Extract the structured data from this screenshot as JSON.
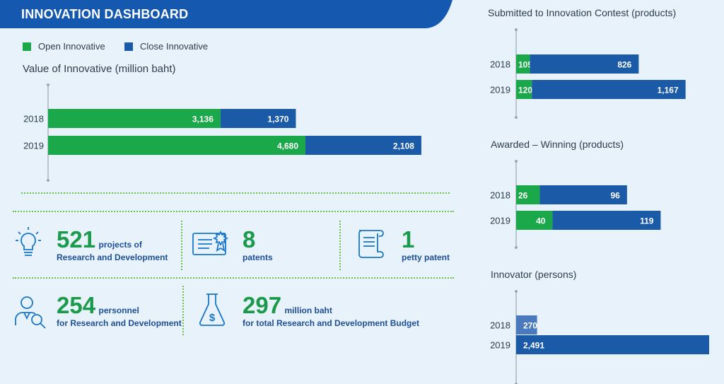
{
  "header": {
    "title": "INNOVATION DASHBOARD"
  },
  "legend": [
    {
      "label": "Open Innovative",
      "color": "#1aa84a"
    },
    {
      "label": "Close Innovative",
      "color": "#1a5aa6"
    }
  ],
  "colors": {
    "open": "#1aa84a",
    "close": "#1a5aa6",
    "innovator_2018": "#4a79bd",
    "innovator_2019": "#1a5aa6",
    "axis": "#9aa6b2"
  },
  "chart_data": [
    {
      "type": "bar",
      "orientation": "horizontal",
      "stacked": true,
      "title": "Value of Innovative (million baht)",
      "categories": [
        "2018",
        "2019"
      ],
      "series": [
        {
          "name": "Open Innovative",
          "values": [
            3136,
            4680
          ],
          "labels": [
            "3,136",
            "4,680"
          ]
        },
        {
          "name": "Close Innovative",
          "values": [
            1370,
            2108
          ],
          "labels": [
            "1,370",
            "2,108"
          ]
        }
      ],
      "xlim": [
        0,
        7200
      ]
    },
    {
      "type": "bar",
      "orientation": "horizontal",
      "stacked": true,
      "title": "Submitted to Innovation Contest (products)",
      "categories": [
        "2018",
        "2019"
      ],
      "series": [
        {
          "name": "Open Innovative",
          "values": [
            105,
            120
          ],
          "labels": [
            "105",
            "120"
          ]
        },
        {
          "name": "Close Innovative",
          "values": [
            826,
            1167
          ],
          "labels": [
            "826",
            "1,167"
          ]
        }
      ],
      "xlim": [
        0,
        1450
      ]
    },
    {
      "type": "bar",
      "orientation": "horizontal",
      "stacked": true,
      "title": "Awarded – Winning (products)",
      "categories": [
        "2018",
        "2019"
      ],
      "series": [
        {
          "name": "Open Innovative",
          "values": [
            26,
            40
          ],
          "labels": [
            "26",
            "40"
          ]
        },
        {
          "name": "Close Innovative",
          "values": [
            96,
            119
          ],
          "labels": [
            "96",
            "119"
          ]
        }
      ],
      "xlim": [
        0,
        210
      ]
    },
    {
      "type": "bar",
      "orientation": "horizontal",
      "stacked": false,
      "title": "Innovator (persons)",
      "categories": [
        "2018",
        "2019"
      ],
      "series": [
        {
          "values": [
            270,
            2491
          ],
          "labels": [
            "270",
            "2,491"
          ]
        }
      ],
      "xlim": [
        0,
        2491
      ]
    }
  ],
  "stats": {
    "projects": {
      "number": "521",
      "label": "projects of",
      "sub": "Research and Development",
      "icon": "lightbulb-icon"
    },
    "patents": {
      "number": "8",
      "sub": "patents",
      "icon": "certificate-icon"
    },
    "petty": {
      "number": "1",
      "sub": "petty patent",
      "icon": "scroll-document-icon"
    },
    "personnel": {
      "number": "254",
      "label": "personnel",
      "sub": "for Research and Development",
      "icon": "researcher-search-icon"
    },
    "budget": {
      "number": "297",
      "label": "million baht",
      "sub": "for total Research and Development Budget",
      "icon": "flask-dollar-icon"
    }
  }
}
